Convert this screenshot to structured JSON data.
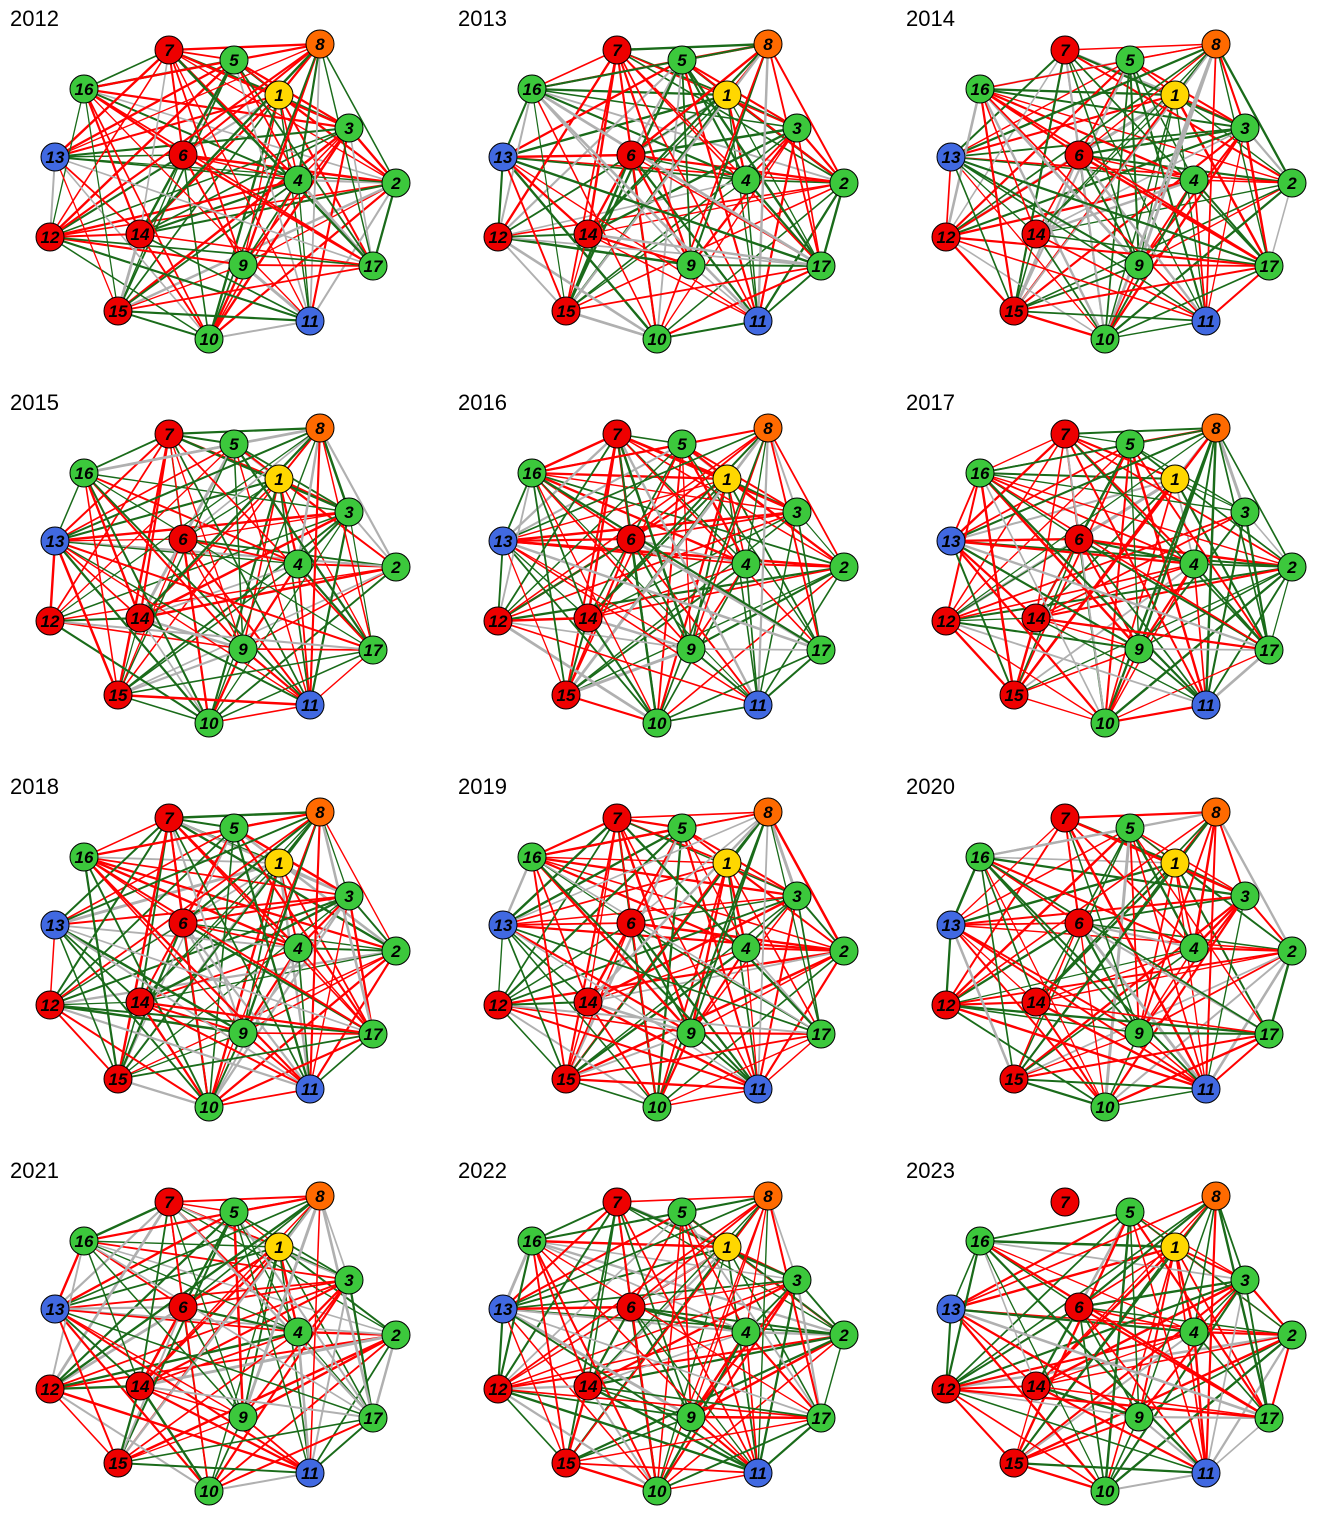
{
  "colors": {
    "red": "#ff0000",
    "green": "#1a6b1a",
    "gray": "#b0b0b0",
    "node_red": "#ee0000",
    "node_orange": "#ff6a00",
    "node_yellow": "#ffd700",
    "node_green": "#3cc83c",
    "node_blue": "#4169e1"
  },
  "nodes": [
    {
      "id": "1",
      "color": "node_yellow"
    },
    {
      "id": "2",
      "color": "node_green"
    },
    {
      "id": "3",
      "color": "node_green"
    },
    {
      "id": "4",
      "color": "node_green"
    },
    {
      "id": "5",
      "color": "node_green"
    },
    {
      "id": "6",
      "color": "node_red"
    },
    {
      "id": "7",
      "color": "node_red"
    },
    {
      "id": "8",
      "color": "node_orange"
    },
    {
      "id": "9",
      "color": "node_green"
    },
    {
      "id": "10",
      "color": "node_green"
    },
    {
      "id": "11",
      "color": "node_blue"
    },
    {
      "id": "12",
      "color": "node_red"
    },
    {
      "id": "13",
      "color": "node_blue"
    },
    {
      "id": "14",
      "color": "node_red"
    },
    {
      "id": "15",
      "color": "node_red"
    },
    {
      "id": "16",
      "color": "node_green"
    },
    {
      "id": "17",
      "color": "node_green"
    }
  ],
  "panels": [
    {
      "year": "2012"
    },
    {
      "year": "2013"
    },
    {
      "year": "2014"
    },
    {
      "year": "2015"
    },
    {
      "year": "2016"
    },
    {
      "year": "2017"
    },
    {
      "year": "2018"
    },
    {
      "year": "2019"
    },
    {
      "year": "2020"
    },
    {
      "year": "2021"
    },
    {
      "year": "2022"
    },
    {
      "year": "2023"
    }
  ]
}
